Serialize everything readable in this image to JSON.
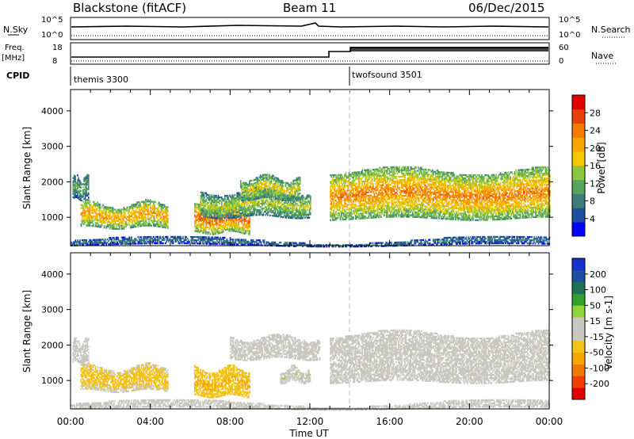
{
  "header": {
    "station": "Blackstone (fitACF)",
    "beam": "Beam 11",
    "date": "06/Dec/2015"
  },
  "strip_labels": {
    "nsky": "N.Sky",
    "freq": "Freq.",
    "freq_unit": "[MHz]",
    "cpid": "CPID",
    "nsearch": "N.Search",
    "nave": "Nave",
    "left_top_ticks": [
      "10^5",
      "10^0"
    ],
    "right_top_ticks": [
      "10^5",
      "10^0"
    ],
    "freq_ticks": [
      "18",
      "8"
    ],
    "nave_ticks": [
      "60",
      "0"
    ]
  },
  "cpid_segments": [
    {
      "label": "themis 3300",
      "start_hour": 0
    },
    {
      "label": "twofsound 3501",
      "start_hour": 14
    }
  ],
  "colors": {
    "power": [
      "#0000ff",
      "#1f4fa0",
      "#3d7d7a",
      "#55a35e",
      "#8dc63f",
      "#f6c800",
      "#f7a700",
      "#f47a00",
      "#e8400a",
      "#e00000"
    ],
    "velocity": [
      "#e00000",
      "#f04000",
      "#f07a00",
      "#f6a800",
      "#f2c21a",
      "#c8c8c0",
      "#c8c8c0",
      "#8fd43a",
      "#33a02c",
      "#1f6f54",
      "#1f4fa0",
      "#1a2fd0"
    ],
    "ground_scatter": "#c0c0b8"
  },
  "chart_data": [
    {
      "type": "heatmap",
      "name": "Power",
      "ylabel": "Slant Range [km]",
      "xlabel": "Time UT",
      "xlim_hours": [
        0,
        24
      ],
      "ylim": [
        200,
        4600
      ],
      "y_ticks": [
        1000,
        2000,
        3000,
        4000
      ],
      "colorbar_label": "Power [dB]",
      "colorbar_ticks": [
        "4",
        "8",
        "12",
        "16",
        "20",
        "24",
        "28"
      ],
      "colorbar_range": [
        0,
        32
      ],
      "echo_bands": [
        {
          "start_hour": 0.1,
          "end_hour": 0.9,
          "min_km": 1500,
          "max_km": 2100,
          "center_value": 12
        },
        {
          "start_hour": 0.5,
          "end_hour": 4.9,
          "min_km": 700,
          "max_km": 1350,
          "center_value": 22
        },
        {
          "start_hour": 6.2,
          "end_hour": 9.0,
          "min_km": 550,
          "max_km": 1300,
          "center_value": 26
        },
        {
          "start_hour": 6.5,
          "end_hour": 12.0,
          "min_km": 1000,
          "max_km": 1700,
          "center_value": 16
        },
        {
          "start_hour": 8.5,
          "end_hour": 11.5,
          "min_km": 1500,
          "max_km": 2100,
          "center_value": 18
        },
        {
          "start_hour": 13.0,
          "end_hour": 24.0,
          "min_km": 950,
          "max_km": 2300,
          "center_value": 24
        },
        {
          "start_hour": 0,
          "end_hour": 24,
          "min_km": 200,
          "max_km": 350,
          "center_value": 8
        }
      ]
    },
    {
      "type": "heatmap",
      "name": "Velocity",
      "ylabel": "Slant Range [km]",
      "xlabel": "Time UT",
      "xlim_hours": [
        0,
        24
      ],
      "ylim": [
        200,
        4600
      ],
      "y_ticks": [
        1000,
        2000,
        3000,
        4000
      ],
      "x_ticks": [
        "00:00",
        "04:00",
        "08:00",
        "12:00",
        "16:00",
        "20:00",
        "00:00"
      ],
      "colorbar_label": "Velocity [m s-1]",
      "colorbar_ticks": [
        "200",
        "100",
        "50",
        "15",
        "-15",
        "-50",
        "-100",
        "-200"
      ],
      "colorbar_range": [
        -250,
        250
      ],
      "echo_bands": [
        {
          "start_hour": 0.1,
          "end_hour": 0.9,
          "min_km": 1500,
          "max_km": 2100,
          "center_value": 0
        },
        {
          "start_hour": 0.5,
          "end_hour": 4.9,
          "min_km": 700,
          "max_km": 1350,
          "center_value": -60
        },
        {
          "start_hour": 6.2,
          "end_hour": 9.0,
          "min_km": 550,
          "max_km": 1300,
          "center_value": -90
        },
        {
          "start_hour": 8.0,
          "end_hour": 12.5,
          "min_km": 1600,
          "max_km": 2200,
          "center_value": 0
        },
        {
          "start_hour": 10.5,
          "end_hour": 12.0,
          "min_km": 950,
          "max_km": 1300,
          "center_value": 40
        },
        {
          "start_hour": 13.0,
          "end_hour": 24.0,
          "min_km": 950,
          "max_km": 2300,
          "center_value": 0
        },
        {
          "start_hour": 0,
          "end_hour": 24,
          "min_km": 200,
          "max_km": 350,
          "center_value": 30
        }
      ]
    }
  ]
}
